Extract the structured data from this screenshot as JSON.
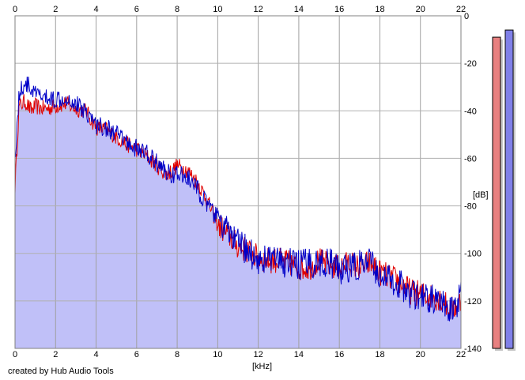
{
  "chart_data": {
    "type": "area",
    "xlabel": "[kHz]",
    "ylabel": "[dB]",
    "xlim": [
      0,
      22
    ],
    "ylim": [
      -140,
      0
    ],
    "x_ticks": [
      "0",
      "2",
      "4",
      "6",
      "8",
      "10",
      "12",
      "14",
      "16",
      "18",
      "20",
      "22"
    ],
    "y_ticks": [
      "0",
      "-20",
      "-40",
      "-60",
      "-80",
      "-100",
      "-120",
      "-140"
    ],
    "grid": true,
    "series": [
      {
        "color": "#e00000",
        "x": [
          0.0,
          0.2,
          0.5,
          0.8,
          1.0,
          1.3,
          1.6,
          2.0,
          2.5,
          3.0,
          3.5,
          4.0,
          4.5,
          5.0,
          5.5,
          6.0,
          6.5,
          7.0,
          7.5,
          8.0,
          8.5,
          9.0,
          9.5,
          10.0,
          10.5,
          11.0,
          11.5,
          12.0,
          12.5,
          13.0,
          13.5,
          14.0,
          14.5,
          15.0,
          15.5,
          16.0,
          16.5,
          17.0,
          17.5,
          18.0,
          18.5,
          19.0,
          19.5,
          20.0,
          20.5,
          21.0,
          21.5,
          22.0
        ],
        "values": [
          -72,
          -38,
          -36,
          -40,
          -38,
          -39,
          -39,
          -38,
          -37,
          -39,
          -40,
          -47,
          -48,
          -51,
          -54,
          -56,
          -59,
          -63,
          -67,
          -63,
          -65,
          -70,
          -78,
          -88,
          -92,
          -97,
          -99,
          -102,
          -103,
          -103,
          -104,
          -106,
          -106,
          -103,
          -105,
          -106,
          -104,
          -106,
          -104,
          -108,
          -110,
          -112,
          -116,
          -117,
          -118,
          -119,
          -124,
          -120
        ]
      },
      {
        "color": "#0000c8",
        "x": [
          0.0,
          0.2,
          0.5,
          0.8,
          1.0,
          1.3,
          1.6,
          2.0,
          2.5,
          3.0,
          3.5,
          4.0,
          4.5,
          5.0,
          5.5,
          6.0,
          6.5,
          7.0,
          7.5,
          8.0,
          8.5,
          9.0,
          9.5,
          10.0,
          10.5,
          11.0,
          11.5,
          12.0,
          12.5,
          13.0,
          13.5,
          14.0,
          14.5,
          15.0,
          15.5,
          16.0,
          16.5,
          17.0,
          17.5,
          18.0,
          18.5,
          19.0,
          19.5,
          20.0,
          20.5,
          21.0,
          21.5,
          22.0
        ],
        "values": [
          -60,
          -33,
          -28,
          -31,
          -33,
          -34,
          -35,
          -35,
          -34,
          -37,
          -40,
          -46,
          -47,
          -50,
          -53,
          -56,
          -58,
          -62,
          -66,
          -67,
          -68,
          -73,
          -80,
          -85,
          -91,
          -96,
          -99,
          -103,
          -102,
          -104,
          -104,
          -105,
          -104,
          -104,
          -104,
          -107,
          -106,
          -105,
          -104,
          -109,
          -111,
          -113,
          -117,
          -119,
          -119,
          -121,
          -125,
          -118
        ]
      }
    ],
    "level_meters": [
      {
        "color": "#e88080",
        "level_db": -9
      },
      {
        "color": "#8080e8",
        "level_db": -6
      }
    ]
  },
  "footer": {
    "credit": "created by Hub Audio Tools"
  }
}
